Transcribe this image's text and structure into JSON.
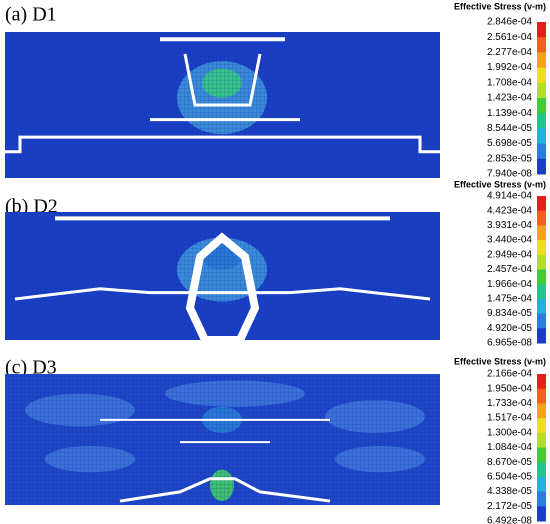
{
  "panels": [
    {
      "label": "(a) D1",
      "colorbar": {
        "title": "Effective Stress (v-m)",
        "ticks": [
          "2.846e-04",
          "2.561e-04",
          "2.277e-04",
          "1.992e-04",
          "1.708e-04",
          "1.423e-04",
          "1.139e-04",
          "8.544e-05",
          "5.698e-05",
          "2.853e-05",
          "7.940e-08"
        ]
      }
    },
    {
      "label": "(b) D2",
      "colorbar": {
        "title": "Effective Stress (v-m)",
        "ticks": [
          "4.914e-04",
          "4.423e-04",
          "3.931e-04",
          "3.440e-04",
          "2.949e-04",
          "2.457e-04",
          "1.966e-04",
          "1.475e-04",
          "9.834e-05",
          "4.920e-05",
          "6.965e-08"
        ]
      }
    },
    {
      "label": "(c) D3",
      "colorbar": {
        "title": "Effective Stress (v-m)",
        "ticks": [
          "2.166e-04",
          "1.950e-04",
          "1.733e-04",
          "1.517e-04",
          "1.300e-04",
          "1.084e-04",
          "8.670e-05",
          "6.504e-05",
          "4.338e-05",
          "2.172e-05",
          "6.492e-08"
        ]
      }
    }
  ],
  "colorbar_colors": [
    "#e3211c",
    "#f2601d",
    "#f6a01b",
    "#eedc22",
    "#b3dd2a",
    "#40cc35",
    "#22c68c",
    "#21b2de",
    "#2a7ce0",
    "#1c3cc8"
  ]
}
